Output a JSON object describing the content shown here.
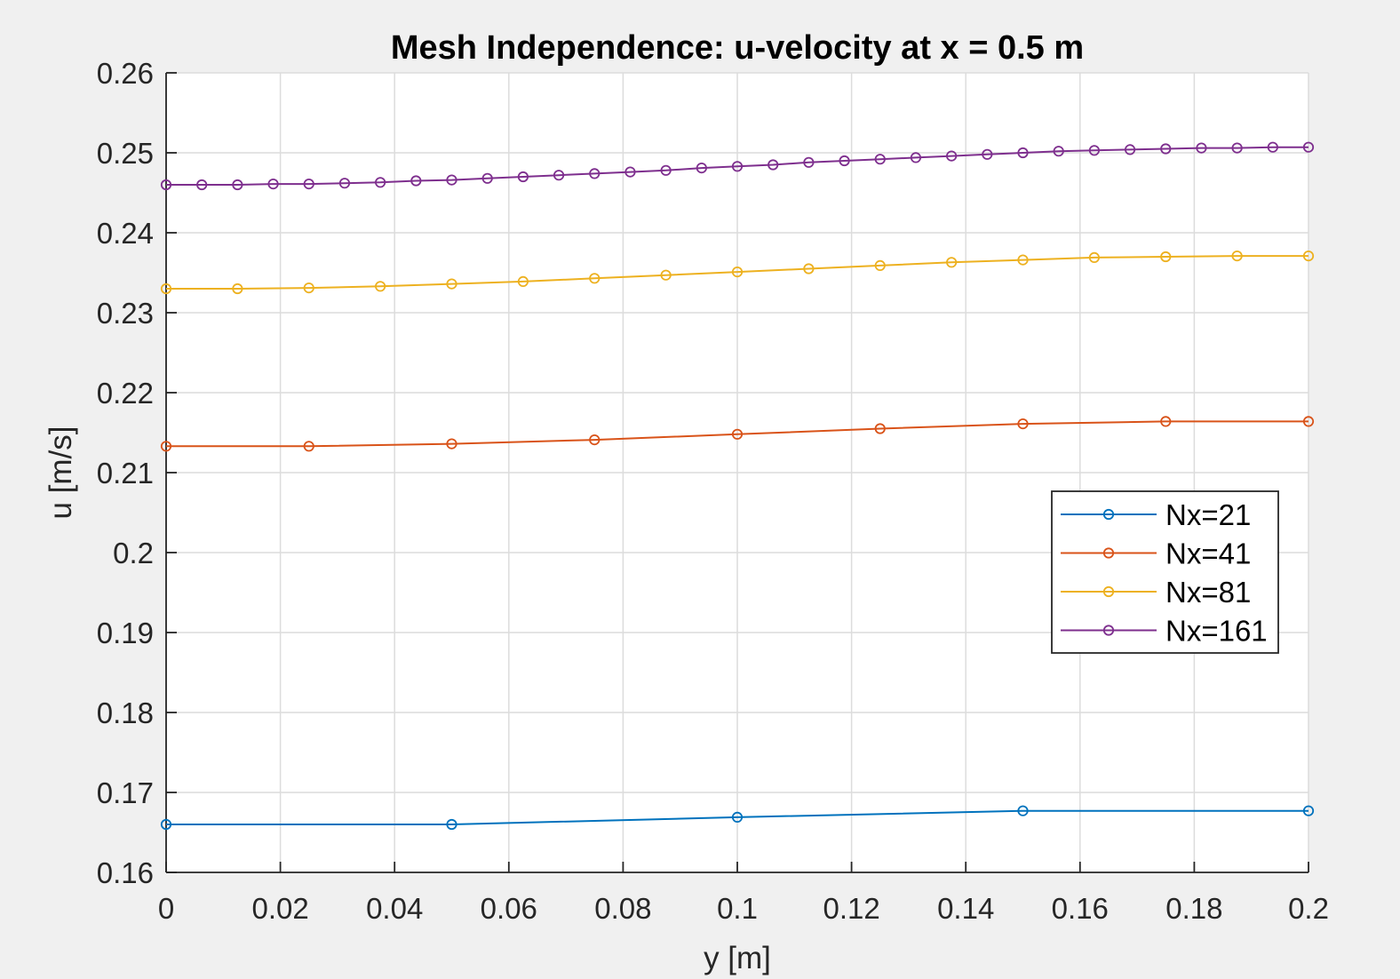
{
  "chart_data": {
    "type": "line",
    "title": "Mesh Independence: u-velocity at x = 0.5 m",
    "xlabel": "y [m]",
    "ylabel": "u [m/s]",
    "xlim": [
      0,
      0.2
    ],
    "ylim": [
      0.16,
      0.26
    ],
    "x_ticks": [
      0,
      0.02,
      0.04,
      0.06,
      0.08,
      0.1,
      0.12,
      0.14,
      0.16,
      0.18,
      0.2
    ],
    "x_tick_labels": [
      "0",
      "0.02",
      "0.04",
      "0.06",
      "0.08",
      "0.1",
      "0.12",
      "0.14",
      "0.16",
      "0.18",
      "0.2"
    ],
    "y_ticks": [
      0.16,
      0.17,
      0.18,
      0.19,
      0.2,
      0.21,
      0.22,
      0.23,
      0.24,
      0.25,
      0.26
    ],
    "y_tick_labels": [
      "0.16",
      "0.17",
      "0.18",
      "0.19",
      "0.2",
      "0.21",
      "0.22",
      "0.23",
      "0.24",
      "0.25",
      "0.26"
    ],
    "grid": true,
    "legend_position": "right",
    "marker": "circle",
    "series": [
      {
        "name": "Nx=21",
        "color": "#0072BD",
        "x": [
          0,
          0.05,
          0.1,
          0.15,
          0.2
        ],
        "y": [
          0.166,
          0.166,
          0.1669,
          0.1677,
          0.1677
        ]
      },
      {
        "name": "Nx=41",
        "color": "#D95319",
        "x": [
          0,
          0.025,
          0.05,
          0.075,
          0.1,
          0.125,
          0.15,
          0.175,
          0.2
        ],
        "y": [
          0.2133,
          0.2133,
          0.2136,
          0.2141,
          0.2148,
          0.2155,
          0.2161,
          0.2164,
          0.2164
        ]
      },
      {
        "name": "Nx=81",
        "color": "#EDB120",
        "x": [
          0,
          0.0125,
          0.025,
          0.0375,
          0.05,
          0.0625,
          0.075,
          0.0875,
          0.1,
          0.1125,
          0.125,
          0.1375,
          0.15,
          0.1625,
          0.175,
          0.1875,
          0.2
        ],
        "y": [
          0.233,
          0.233,
          0.2331,
          0.2333,
          0.2336,
          0.2339,
          0.2343,
          0.2347,
          0.2351,
          0.2355,
          0.2359,
          0.2363,
          0.2366,
          0.2369,
          0.237,
          0.2371,
          0.2371
        ]
      },
      {
        "name": "Nx=161",
        "color": "#7E2F8E",
        "x": [
          0,
          0.00625,
          0.0125,
          0.01875,
          0.025,
          0.03125,
          0.0375,
          0.04375,
          0.05,
          0.05625,
          0.0625,
          0.06875,
          0.075,
          0.08125,
          0.0875,
          0.09375,
          0.1,
          0.10625,
          0.1125,
          0.11875,
          0.125,
          0.13125,
          0.1375,
          0.14375,
          0.15,
          0.15625,
          0.1625,
          0.16875,
          0.175,
          0.18125,
          0.1875,
          0.19375,
          0.2
        ],
        "y": [
          0.246,
          0.246,
          0.246,
          0.2461,
          0.2461,
          0.2462,
          0.2463,
          0.2465,
          0.2466,
          0.2468,
          0.247,
          0.2472,
          0.2474,
          0.2476,
          0.2478,
          0.2481,
          0.2483,
          0.2485,
          0.2488,
          0.249,
          0.2492,
          0.2494,
          0.2496,
          0.2498,
          0.25,
          0.2502,
          0.2503,
          0.2504,
          0.2505,
          0.2506,
          0.2506,
          0.2507,
          0.2507
        ]
      }
    ]
  }
}
